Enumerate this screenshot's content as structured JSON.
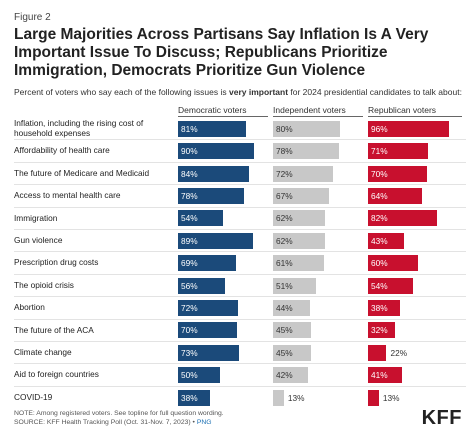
{
  "figure_label": "Figure 2",
  "title": "Large Majorities Across Partisans Say Inflation Is A Very Important Issue To Discuss; Republicans Prioritize Immigration, Democrats Prioritize Gun Violence",
  "subtitle_before": "Percent of voters who say each of the following issues is ",
  "subtitle_bold": "very important",
  "subtitle_after": " for 2024 presidential candidates to talk about:",
  "chart_data": {
    "type": "bar",
    "orientation": "horizontal",
    "categories": [
      "Inflation, including the rising cost of household expenses",
      "Affordability of health care",
      "The future of Medicare and Medicaid",
      "Access to mental health care",
      "Immigration",
      "Gun violence",
      "Prescription drug costs",
      "The opioid crisis",
      "Abortion",
      "The future of the ACA",
      "Climate change",
      "Aid to foreign countries",
      "COVID-19"
    ],
    "series": [
      {
        "name": "Democratic voters",
        "color": "#1b4a7a",
        "values": [
          81,
          90,
          84,
          78,
          54,
          89,
          69,
          56,
          72,
          70,
          73,
          50,
          38
        ]
      },
      {
        "name": "Independent voters",
        "color": "#c8c8c8",
        "values": [
          80,
          78,
          72,
          67,
          62,
          62,
          61,
          51,
          44,
          45,
          45,
          42,
          13
        ]
      },
      {
        "name": "Republican voters",
        "color": "#c8102e",
        "values": [
          96,
          71,
          70,
          64,
          82,
          43,
          60,
          54,
          38,
          32,
          22,
          41,
          13
        ]
      }
    ],
    "value_suffix": "%",
    "xlim": [
      0,
      100
    ],
    "legend": "column headers above each panel",
    "grid": false
  },
  "notes": {
    "line1": "NOTE: Among registered voters. See topline for full question wording.",
    "line2_prefix": "SOURCE: KFF Health Tracking Poll (Oct. 31-Nov. 7, 2023) • ",
    "line2_link": "PNG"
  },
  "logo": "KFF"
}
